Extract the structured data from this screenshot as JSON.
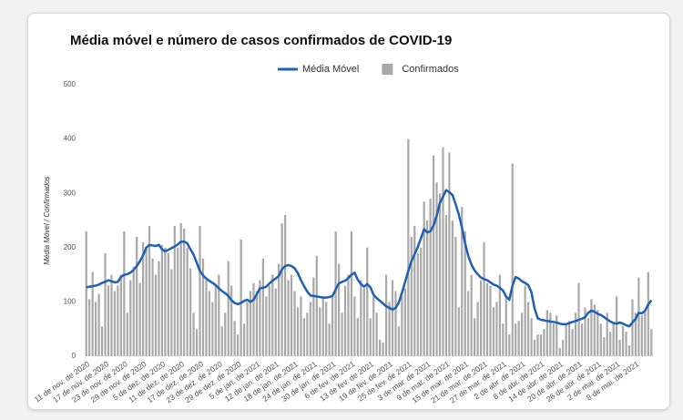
{
  "chart_data": {
    "type": "combo",
    "title": "Média móvel e número de casos confirmados de COVID-19",
    "y_label": "Média Móvel / Confirmados",
    "ylim": [
      0,
      500
    ],
    "yticks": [
      0,
      100,
      200,
      300,
      400,
      500
    ],
    "grid": false,
    "legend": "top",
    "categories": [
      "11 de nov. de 2020",
      null,
      null,
      null,
      null,
      null,
      "17 de nov. de 2020",
      null,
      null,
      null,
      null,
      null,
      "23 de nov. de 2020",
      null,
      null,
      null,
      null,
      null,
      "29 de nov. de 2020",
      null,
      null,
      null,
      null,
      null,
      "5 de dez. de 2020",
      null,
      null,
      null,
      null,
      null,
      "11 de dez. de 2020",
      null,
      null,
      null,
      null,
      null,
      "17 de dez. de 2020",
      null,
      null,
      null,
      null,
      null,
      "23 de dez. de 2020",
      null,
      null,
      null,
      null,
      null,
      "29 de dez. de 2020",
      null,
      null,
      null,
      null,
      null,
      "5 de jan. de 2021",
      null,
      null,
      null,
      null,
      null,
      "12 de jan. de 2021",
      null,
      null,
      null,
      null,
      null,
      "18 de jan. de 2021",
      null,
      null,
      null,
      null,
      null,
      "24 de jan. de 2021",
      null,
      null,
      null,
      null,
      null,
      "30 de jan. de 2021",
      null,
      null,
      null,
      null,
      null,
      "6 de fev. de 2021",
      null,
      null,
      null,
      null,
      null,
      "13 de fev. de 2021",
      null,
      null,
      null,
      null,
      null,
      "19 de fev. de 2021",
      null,
      null,
      null,
      null,
      null,
      "25 de fev. de 2021",
      null,
      null,
      null,
      null,
      null,
      "3 de mar. de 2021",
      null,
      null,
      null,
      null,
      null,
      "9 de mar. de 2021",
      null,
      null,
      null,
      null,
      null,
      "15 de mar. de 2021",
      null,
      null,
      null,
      null,
      null,
      "21 de mar. de 2021",
      null,
      null,
      null,
      null,
      null,
      "27 de mar. de 2021",
      null,
      null,
      null,
      null,
      null,
      "2 de abr. de 2021",
      null,
      null,
      null,
      null,
      null,
      "8 de abr. de 2021",
      null,
      null,
      null,
      null,
      null,
      "14 de abr. de 2021",
      null,
      null,
      null,
      null,
      null,
      "20 de abr. de 2021",
      null,
      null,
      null,
      null,
      null,
      "26 de abr. de 2021",
      null,
      null,
      null,
      null,
      null,
      "2 de mai. de 2021",
      null,
      null,
      null,
      null,
      null,
      "8 de mai. de 2021",
      null,
      null,
      null,
      null,
      null
    ],
    "series": [
      {
        "name": "Média Móvel",
        "type": "line",
        "color": "#1f5fb4",
        "values": [
          127,
          128,
          129,
          130,
          132,
          135,
          137,
          140,
          138,
          136,
          137,
          146,
          150,
          151,
          154,
          159,
          166,
          175,
          186,
          200,
          205,
          204,
          203,
          205,
          197,
          193,
          196,
          199,
          202,
          206,
          211,
          211,
          208,
          197,
          187,
          172,
          157,
          149,
          143,
          139,
          135,
          131,
          125,
          120,
          116,
          111,
          103,
          98,
          96,
          98,
          102,
          104,
          100,
          104,
          114,
          125,
          126,
          128,
          134,
          139,
          143,
          148,
          160,
          166,
          168,
          166,
          162,
          153,
          140,
          129,
          119,
          112,
          111,
          110,
          109,
          108,
          108,
          109,
          111,
          123,
          134,
          137,
          139,
          144,
          150,
          154,
          141,
          133,
          128,
          133,
          127,
          113,
          107,
          102,
          97,
          92,
          89,
          86,
          89,
          99,
          117,
          137,
          157,
          175,
          188,
          201,
          217,
          234,
          228,
          230,
          241,
          259,
          282,
          294,
          306,
          302,
          297,
          280,
          261,
          237,
          208,
          185,
          169,
          158,
          151,
          145,
          142,
          140,
          136,
          132,
          130,
          126,
          121,
          110,
          104,
          130,
          146,
          143,
          138,
          135,
          131,
          118,
          88,
          70,
          67,
          66,
          65,
          64,
          63,
          62,
          60,
          59,
          59,
          61,
          63,
          65,
          67,
          69,
          72,
          80,
          84,
          82,
          78,
          76,
          72,
          68,
          64,
          61,
          60,
          62,
          60,
          57,
          55,
          62,
          69,
          80,
          79,
          84,
          95,
          103
        ]
      },
      {
        "name": "Confirmados",
        "type": "bar",
        "color": "#a9a9a9",
        "values": [
          230,
          105,
          155,
          100,
          115,
          55,
          190,
          130,
          150,
          120,
          130,
          150,
          230,
          80,
          140,
          165,
          220,
          135,
          210,
          200,
          240,
          180,
          150,
          175,
          205,
          200,
          190,
          160,
          240,
          200,
          245,
          235,
          200,
          162,
          80,
          50,
          240,
          180,
          140,
          120,
          100,
          130,
          150,
          55,
          80,
          175,
          130,
          65,
          40,
          215,
          60,
          100,
          120,
          135,
          120,
          140,
          180,
          110,
          130,
          150,
          125,
          170,
          245,
          260,
          140,
          150,
          120,
          90,
          110,
          70,
          80,
          100,
          145,
          185,
          90,
          110,
          100,
          60,
          110,
          230,
          170,
          80,
          130,
          150,
          230,
          110,
          70,
          140,
          125,
          200,
          70,
          110,
          80,
          30,
          25,
          150,
          100,
          140,
          120,
          55,
          110,
          125,
          400,
          220,
          240,
          190,
          200,
          285,
          250,
          290,
          370,
          320,
          300,
          385,
          260,
          375,
          250,
          220,
          90,
          275,
          230,
          120,
          150,
          70,
          100,
          140,
          210,
          135,
          130,
          90,
          100,
          150,
          60,
          110,
          40,
          355,
          60,
          65,
          80,
          130,
          100,
          70,
          30,
          40,
          40,
          50,
          85,
          80,
          60,
          75,
          15,
          30,
          60,
          65,
          50,
          80,
          135,
          60,
          90,
          70,
          105,
          95,
          85,
          60,
          35,
          80,
          45,
          60,
          110,
          30,
          55,
          45,
          20,
          105,
          80,
          145,
          75,
          85,
          155,
          50
        ]
      }
    ]
  }
}
